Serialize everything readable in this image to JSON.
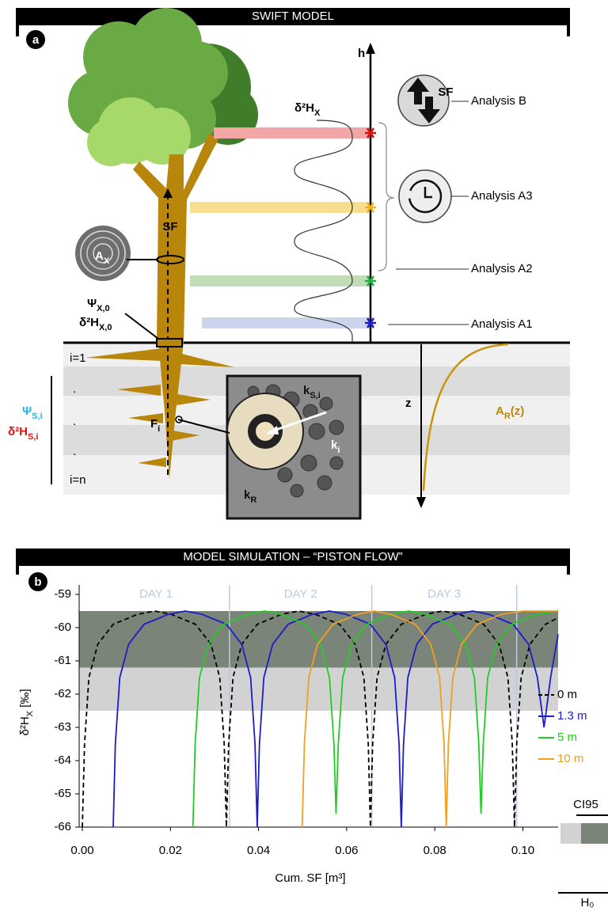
{
  "header": {
    "title": "SWIFT MODEL",
    "panel": "a"
  },
  "diagram": {
    "h_axis": "h",
    "z_axis": "z",
    "curve_label": {
      "main": "δ²H",
      "sub": "X"
    },
    "trunk_flow": "SF",
    "icon_flow": "SF",
    "wood": {
      "main": "A",
      "sub": "X"
    },
    "xylem_potential": {
      "main": "Ψ",
      "sub": "X,0"
    },
    "xylem_isotope": {
      "main": "δ²H",
      "sub": "X,0"
    },
    "layers": [
      "i=1",
      ".",
      ".",
      ".",
      "i=n"
    ],
    "soil_potential": {
      "main": "Ψ",
      "sub": "S,i"
    },
    "soil_isotope": {
      "main": "δ²H",
      "sub": "S,i"
    },
    "root_flux": {
      "main": "F",
      "sub": "i"
    },
    "soil_conductance": {
      "main": "k",
      "sub": "S,i"
    },
    "conductance": {
      "main": "k",
      "sub": "i"
    },
    "root_conductance": {
      "main": "k",
      "sub": "R"
    },
    "root_distribution": {
      "main": "A",
      "sub": "R",
      "tail": "(z)"
    },
    "analyses": [
      "Analysis B",
      "Analysis A3",
      "Analysis A2",
      "Analysis A1"
    ]
  },
  "chart_header": {
    "title": "MODEL SIMULATION – “PISTON FLOW”",
    "panel": "b"
  },
  "chart_data": {
    "type": "line",
    "x_label": "Cum. SF [m³]",
    "y_label": {
      "main": "δ²H",
      "sub": "X",
      "tail": " [‰]"
    },
    "xlim": [
      0,
      0.108
    ],
    "ylim": [
      -66,
      -59
    ],
    "xticks": [
      {
        "value": 0,
        "label": "0.00"
      },
      {
        "value": 0.02,
        "label": "0.02"
      },
      {
        "value": 0.04,
        "label": "0.04"
      },
      {
        "value": 0.06,
        "label": "0.06"
      },
      {
        "value": 0.08,
        "label": "0.08"
      },
      {
        "value": 0.1,
        "label": "0.10"
      }
    ],
    "yticks": [
      -66,
      -65,
      -64,
      -63,
      -62,
      -61,
      -60,
      -59
    ],
    "day_labels": [
      "DAY 1",
      "DAY 2",
      "DAY 3"
    ],
    "day_boundaries": [
      0.0334,
      0.0657,
      0.0986
    ],
    "day_color": "#b8cce4",
    "bands": [
      {
        "label": "H₀",
        "from": -59.5,
        "to": -62.5,
        "color": "#d2d2d2"
      },
      {
        "label": "CI95",
        "from": -59.5,
        "to": -61.2,
        "color": "#7b8478"
      }
    ],
    "legend": "right",
    "series": [
      {
        "name": "0 m",
        "color": "#000000",
        "dash": true,
        "x": [
          0,
          0.0005,
          0.0015,
          0.0035,
          0.007,
          0.0125,
          0.0164,
          0.0202,
          0.0257,
          0.0292,
          0.0312,
          0.0322,
          0.0327,
          0.0332,
          0.0342,
          0.0362,
          0.0397,
          0.0452,
          0.0491,
          0.0529,
          0.0584,
          0.0619,
          0.0639,
          0.0649,
          0.0654,
          0.0659,
          0.0669,
          0.0689,
          0.0724,
          0.0779,
          0.0818,
          0.0856,
          0.0911,
          0.0946,
          0.0966,
          0.0976,
          0.0981,
          0.0986,
          0.0996,
          0.1016,
          0.1051,
          0.108
        ],
        "values": [
          -66,
          -63.5,
          -61.5,
          -60.5,
          -59.9,
          -59.6,
          -59.5,
          -59.6,
          -59.9,
          -60.5,
          -61.5,
          -63.5,
          -66,
          -63.5,
          -61.5,
          -60.5,
          -59.9,
          -59.6,
          -59.5,
          -59.6,
          -59.9,
          -60.5,
          -61.5,
          -63.5,
          -66,
          -63.5,
          -61.5,
          -60.5,
          -59.9,
          -59.6,
          -59.5,
          -59.6,
          -59.9,
          -60.5,
          -61.5,
          -63.5,
          -66,
          -63.5,
          -61.5,
          -60.5,
          -59.9,
          -59.7
        ]
      },
      {
        "name": "1.3 m",
        "color": "#1c1cc8",
        "dash": false,
        "x": [
          0.007,
          0.0075,
          0.0085,
          0.0105,
          0.014,
          0.0195,
          0.0234,
          0.0272,
          0.0327,
          0.0362,
          0.0382,
          0.0392,
          0.0397,
          0.0402,
          0.0412,
          0.0432,
          0.0467,
          0.0522,
          0.0561,
          0.0599,
          0.0654,
          0.0689,
          0.0709,
          0.0719,
          0.0724,
          0.0729,
          0.0739,
          0.0759,
          0.0794,
          0.0849,
          0.0886,
          0.0923,
          0.0978,
          0.1013,
          0.1033,
          0.1043,
          0.1048,
          0.1053,
          0.1063,
          0.108
        ],
        "values": [
          -66,
          -63.5,
          -61.5,
          -60.5,
          -59.9,
          -59.6,
          -59.5,
          -59.6,
          -59.9,
          -60.5,
          -61.5,
          -63.5,
          -66,
          -63.5,
          -61.5,
          -60.5,
          -59.9,
          -59.6,
          -59.5,
          -59.6,
          -59.9,
          -60.5,
          -61.5,
          -63.5,
          -66,
          -63.5,
          -61.5,
          -60.5,
          -59.9,
          -59.6,
          -59.5,
          -59.6,
          -59.9,
          -60.5,
          -61.5,
          -62.5,
          -63,
          -62.5,
          -61.5,
          -60.2
        ]
      },
      {
        "name": "5 m",
        "color": "#22cc22",
        "dash": false,
        "x": [
          0.0251,
          0.0256,
          0.0266,
          0.0286,
          0.0321,
          0.0376,
          0.0414,
          0.0451,
          0.0506,
          0.0541,
          0.0561,
          0.0571,
          0.0576,
          0.0581,
          0.0591,
          0.0611,
          0.0646,
          0.0701,
          0.0741,
          0.078,
          0.0835,
          0.087,
          0.089,
          0.09,
          0.0905,
          0.091,
          0.092,
          0.094,
          0.0975,
          0.103,
          0.108
        ],
        "values": [
          -66,
          -63.5,
          -61.5,
          -60.5,
          -59.9,
          -59.6,
          -59.5,
          -59.6,
          -59.9,
          -60.5,
          -61.5,
          -63.5,
          -65.6,
          -63.5,
          -61.5,
          -60.5,
          -59.9,
          -59.6,
          -59.5,
          -59.6,
          -59.9,
          -60.5,
          -61.5,
          -63.5,
          -65.6,
          -63.5,
          -61.5,
          -60.5,
          -59.9,
          -59.6,
          -59.5
        ]
      },
      {
        "name": "10 m",
        "color": "#f0a020",
        "dash": false,
        "x": [
          0.0499,
          0.0504,
          0.0514,
          0.0534,
          0.0569,
          0.0624,
          0.0663,
          0.0701,
          0.0756,
          0.0791,
          0.0811,
          0.0821,
          0.0826,
          0.0831,
          0.0841,
          0.0861,
          0.0896,
          0.0951,
          0.1,
          0.108
        ],
        "values": [
          -66,
          -63.5,
          -61.5,
          -60.5,
          -59.9,
          -59.6,
          -59.5,
          -59.6,
          -59.9,
          -60.5,
          -61.5,
          -63.5,
          -66,
          -63.5,
          -61.5,
          -60.5,
          -59.9,
          -59.6,
          -59.5,
          -59.5
        ]
      }
    ]
  }
}
